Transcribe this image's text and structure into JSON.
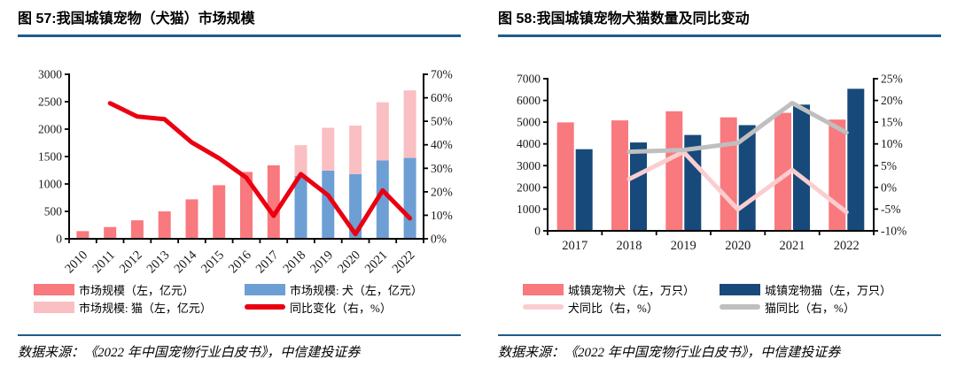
{
  "page": {
    "background": "#ffffff",
    "rule_color": "#1f5c8a"
  },
  "figure57": {
    "title": "图 57:我国城镇宠物（犬猫）市场规模",
    "source": "数据来源：《2022 年中国宠物行业白皮书》，中信建投证券"
  },
  "figure58": {
    "title": "图 58:我国城镇宠物犬猫数量及同比变动",
    "source": "数据来源：《2022 年中国宠物行业白皮书》，中信建投证券"
  },
  "chart_data": [
    {
      "type": "bar",
      "title": "图 57:我国城镇宠物（犬猫）市场规模",
      "categories": [
        "2010",
        "2011",
        "2012",
        "2013",
        "2014",
        "2015",
        "2016",
        "2017",
        "2018",
        "2019",
        "2020",
        "2021",
        "2022"
      ],
      "bar_mode": "stacked",
      "x_label_rotate": -45,
      "grid": false,
      "legend_position": "bottom",
      "left_axis": {
        "min": 0,
        "max": 3000,
        "step": 500,
        "suffix": ""
      },
      "right_axis": {
        "min": 0,
        "max": 70,
        "step": 10,
        "suffix": "%"
      },
      "series": [
        {
          "name": "市场规模（左，亿元）",
          "kind": "bar",
          "axis": "left",
          "color": "#F8797E",
          "values": [
            140,
            214,
            337,
            500,
            719,
            978,
            1220,
            1340,
            null,
            null,
            null,
            null,
            null
          ]
        },
        {
          "name": "市场规模: 犬（左，亿元）",
          "kind": "bar",
          "axis": "left",
          "color": "#6D9FD5",
          "values": [
            null,
            null,
            null,
            null,
            null,
            null,
            null,
            null,
            1150,
            1244,
            1180,
            1430,
            1475
          ]
        },
        {
          "name": "市场规模: 猫（左，亿元）",
          "kind": "bar",
          "axis": "left",
          "color": "#FABFC2",
          "values": [
            null,
            null,
            null,
            null,
            null,
            null,
            null,
            null,
            558,
            780,
            885,
            1060,
            1231
          ]
        },
        {
          "name": "同比变化（右，%）",
          "kind": "line",
          "axis": "right",
          "color": "#EA0011",
          "values": [
            null,
            57.7,
            52.0,
            50.9,
            41.0,
            34.3,
            26.0,
            9.8,
            27.5,
            18.5,
            2.0,
            20.6,
            8.7
          ]
        }
      ]
    },
    {
      "type": "bar",
      "title": "图 58:我国城镇宠物犬猫数量及同比变动",
      "categories": [
        "2017",
        "2018",
        "2019",
        "2020",
        "2021",
        "2022"
      ],
      "bar_mode": "grouped",
      "x_label_rotate": 0,
      "grid": false,
      "legend_position": "bottom",
      "left_axis": {
        "min": 0,
        "max": 7000,
        "step": 1000,
        "suffix": ""
      },
      "right_axis": {
        "min": -10,
        "max": 25,
        "step": 5,
        "suffix": "%"
      },
      "series": [
        {
          "name": "城镇宠物犬（左，万只）",
          "kind": "bar",
          "axis": "left",
          "color": "#F8797E",
          "values": [
            4990,
            5085,
            5503,
            5222,
            5429,
            5119
          ]
        },
        {
          "name": "城镇宠物猫（左，万只）",
          "kind": "bar",
          "axis": "left",
          "color": "#17497B",
          "values": [
            3756,
            4064,
            4412,
            4862,
            5806,
            6536
          ]
        },
        {
          "name": "犬同比（右，%）",
          "kind": "line",
          "axis": "right",
          "color": "#FBCDCF",
          "values": [
            null,
            1.9,
            8.2,
            -5.1,
            4.0,
            -5.7
          ]
        },
        {
          "name": "猫同比（右，%）",
          "kind": "line",
          "axis": "right",
          "color": "#BFBFBF",
          "values": [
            null,
            8.2,
            8.6,
            10.2,
            19.4,
            12.6
          ]
        }
      ]
    }
  ]
}
